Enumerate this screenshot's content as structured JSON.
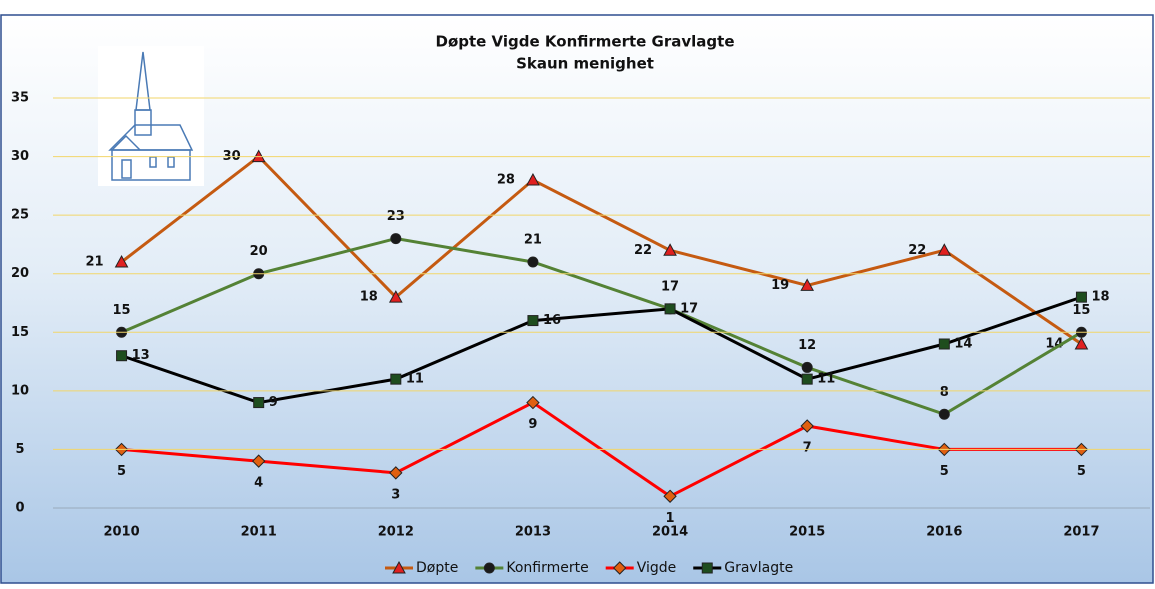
{
  "chart_data": {
    "type": "line",
    "title": "Døpte Vigde Konfirmerte Gravlagte",
    "subtitle": "Skaun menighet",
    "categories": [
      "2010",
      "2011",
      "2012",
      "2013",
      "2014",
      "2015",
      "2016",
      "2017"
    ],
    "series": [
      {
        "name": "Døpte",
        "color": "#c55a11",
        "marker": "triangle",
        "marker_color": "#e02020",
        "values": [
          21,
          30,
          18,
          28,
          22,
          19,
          22,
          14
        ]
      },
      {
        "name": "Konfirmerte",
        "color": "#548235",
        "marker": "circle",
        "marker_color": "#1a1a1a",
        "values": [
          15,
          20,
          23,
          21,
          17,
          12,
          8,
          15
        ]
      },
      {
        "name": "Vigde",
        "color": "#ff0000",
        "marker": "diamond",
        "marker_color": "#e06010",
        "values": [
          5,
          4,
          3,
          9,
          1,
          7,
          5,
          5
        ]
      },
      {
        "name": "Gravlagte",
        "color": "#000000",
        "marker": "square",
        "marker_color": "#1e4d1e",
        "values": [
          13,
          9,
          11,
          16,
          17,
          11,
          14,
          18
        ]
      }
    ],
    "ylim": [
      0,
      35
    ],
    "yticks": [
      0,
      5,
      10,
      15,
      20,
      25,
      30,
      35
    ],
    "grid": true
  }
}
